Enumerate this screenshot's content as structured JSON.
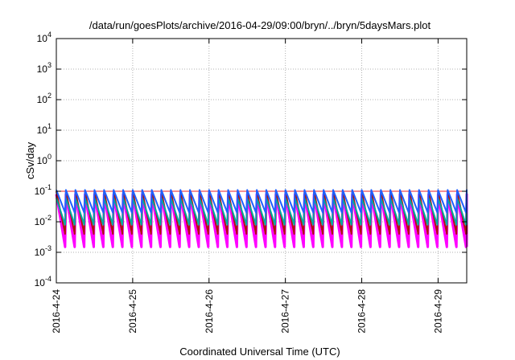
{
  "chart_data": {
    "type": "line",
    "title": "/data/run/goesPlots/archive/2016-04-29/09:00/bryn/../bryn/5daysMars.plot",
    "xlabel": "Coordinated Universal Time (UTC)",
    "ylabel": "cSv/day",
    "yscale": "log",
    "ylim": [
      0.0001,
      10000
    ],
    "y_ticks": [
      {
        "base": "10",
        "exp": "-4",
        "value": 0.0001
      },
      {
        "base": "10",
        "exp": "-3",
        "value": 0.001
      },
      {
        "base": "10",
        "exp": "-2",
        "value": 0.01
      },
      {
        "base": "10",
        "exp": "-1",
        "value": 0.1
      },
      {
        "base": "10",
        "exp": "0",
        "value": 1
      },
      {
        "base": "10",
        "exp": "1",
        "value": 10
      },
      {
        "base": "10",
        "exp": "2",
        "value": 100
      },
      {
        "base": "10",
        "exp": "3",
        "value": 1000
      },
      {
        "base": "10",
        "exp": "4",
        "value": 10000
      }
    ],
    "xlim": [
      "2016-04-24 00:00",
      "2016-04-29 09:00"
    ],
    "x_ticks": [
      "2016-4-24",
      "2016-4-25",
      "2016-4-26",
      "2016-4-27",
      "2016-4-28",
      "2016-4-29"
    ],
    "grid": true,
    "reference_line": {
      "value": 0.1,
      "color": "#e8222a"
    },
    "series_colors": [
      "#ff00ff",
      "#b01010",
      "#00aaa0",
      "#2060ff"
    ],
    "series": [
      {
        "color": "#ff00ff",
        "peak": 0.08,
        "trough": 0.0015
      },
      {
        "color": "#b01010",
        "peak": 0.1,
        "trough": 0.004
      },
      {
        "color": "#00aaa0",
        "peak": 0.06,
        "trough": 0.008
      },
      {
        "color": "#2060ff",
        "peak": 0.11,
        "trough": 0.02
      }
    ],
    "sawtooth_period_hours": 3
  }
}
